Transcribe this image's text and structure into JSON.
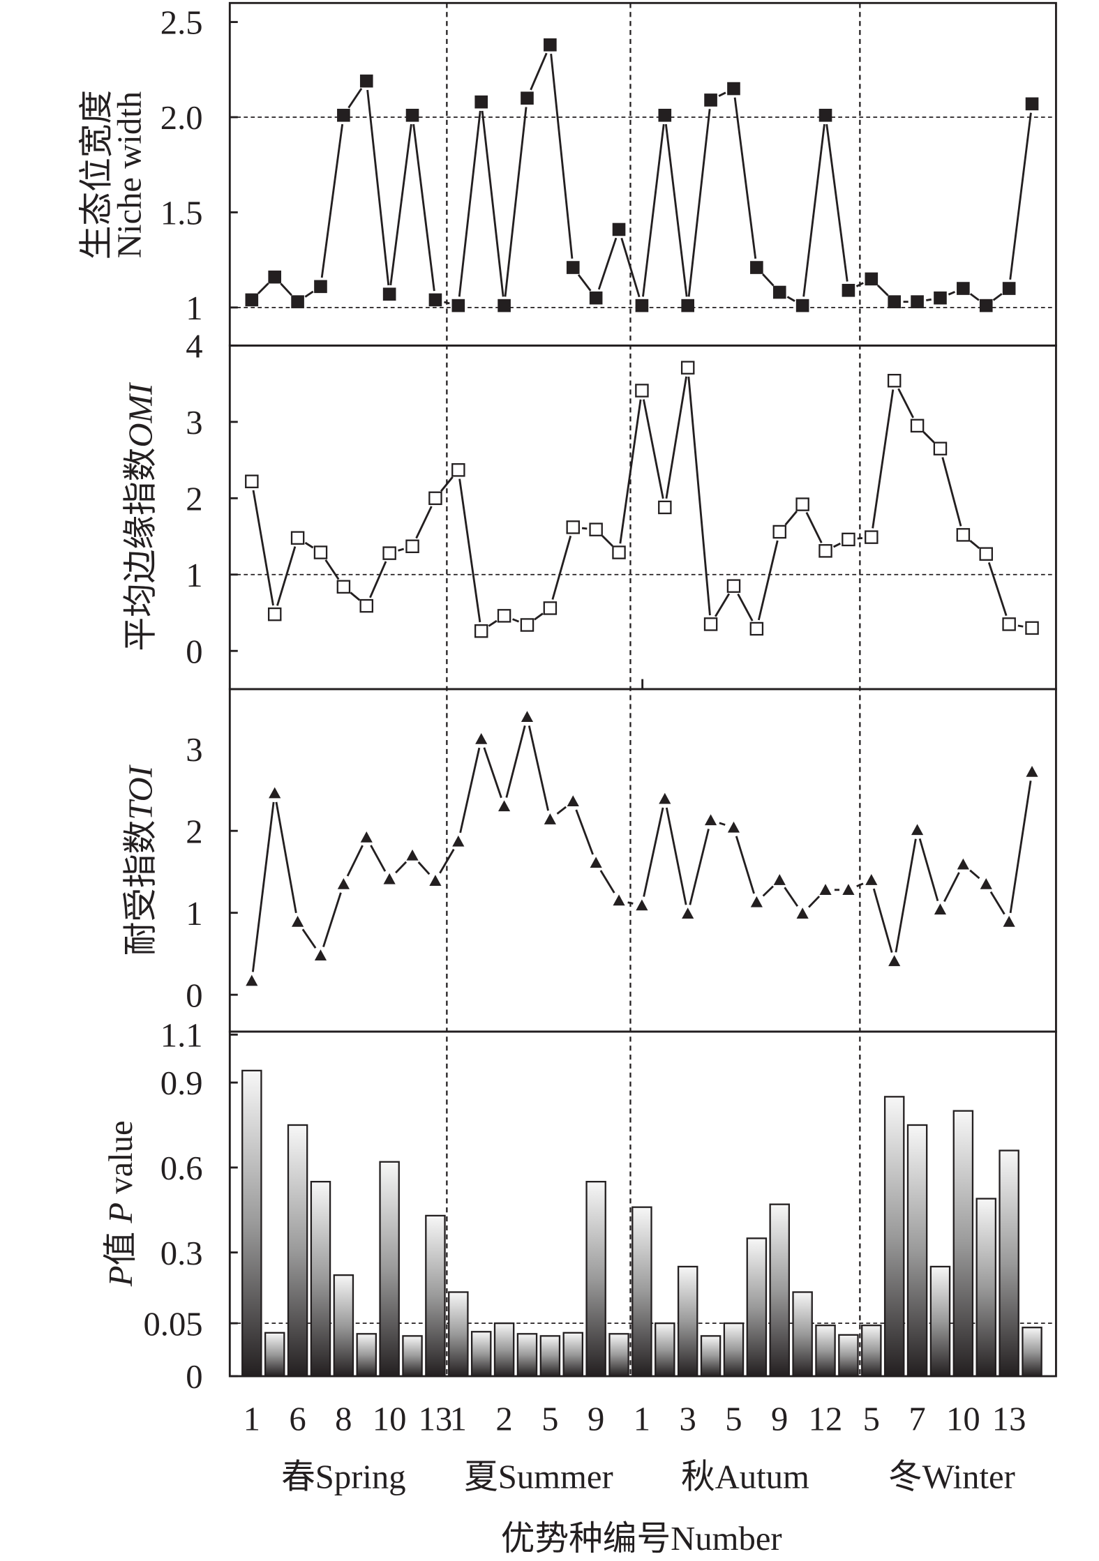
{
  "chart_data": [
    {
      "type": "line",
      "panel": "niche",
      "ylabel_cn": "生态位宽度",
      "ylabel_en": "Niche width",
      "ylim": [
        0.8,
        2.6
      ],
      "yticks": [
        1,
        1.5,
        2.0,
        2.5
      ],
      "ytick_labels": [
        "1",
        "1.5",
        "2.0",
        "2.5"
      ],
      "reference_lines": [
        1,
        2
      ],
      "marker": "filled-square",
      "values": [
        1.04,
        1.16,
        1.03,
        1.11,
        2.01,
        2.19,
        1.07,
        2.01,
        1.04,
        1.01,
        2.08,
        1.01,
        2.1,
        2.38,
        1.21,
        1.05,
        1.41,
        1.01,
        2.01,
        1.01,
        2.09,
        2.15,
        1.21,
        1.08,
        1.01,
        2.01,
        1.09,
        1.15,
        1.03,
        1.03,
        1.05,
        1.1,
        1.01,
        1.1,
        2.07
      ]
    },
    {
      "type": "line",
      "panel": "omi",
      "ylabel_cn": "平均边缘指数",
      "ylabel_en": "OMI",
      "ylim": [
        -0.5,
        4
      ],
      "yticks": [
        0,
        1,
        2,
        3,
        4
      ],
      "ytick_labels": [
        "0",
        "1",
        "2",
        "3",
        "4"
      ],
      "reference_lines": [
        1
      ],
      "marker": "open-square",
      "values": [
        2.22,
        0.48,
        1.48,
        1.29,
        0.84,
        0.59,
        1.28,
        1.37,
        2.0,
        2.37,
        0.26,
        0.46,
        0.34,
        0.56,
        1.62,
        1.59,
        1.29,
        3.41,
        1.88,
        3.71,
        0.35,
        0.85,
        0.29,
        1.56,
        1.92,
        1.31,
        1.46,
        1.49,
        3.54,
        2.95,
        2.65,
        1.52,
        1.27,
        0.35,
        0.3
      ]
    },
    {
      "type": "line",
      "panel": "toi",
      "ylabel_cn": "耐受指数",
      "ylabel_en": "TOI",
      "ylim": [
        -0.45,
        3.73
      ],
      "yticks": [
        0,
        1,
        2,
        3
      ],
      "ytick_labels": [
        "0",
        "1",
        "2",
        "3"
      ],
      "reference_lines": [],
      "marker": "filled-triangle",
      "values": [
        0.17,
        2.46,
        0.89,
        0.48,
        1.35,
        1.92,
        1.41,
        1.7,
        1.39,
        1.87,
        3.12,
        2.3,
        3.39,
        2.14,
        2.36,
        1.61,
        1.15,
        1.09,
        2.39,
        0.99,
        2.13,
        2.04,
        1.13,
        1.4,
        0.99,
        1.28,
        1.28,
        1.4,
        0.41,
        2.01,
        1.04,
        1.59,
        1.35,
        0.89,
        2.72
      ]
    },
    {
      "type": "bar",
      "panel": "pvalue",
      "ylabel_cn": "值",
      "ylabel_p": "P",
      "ylabel_en": "value",
      "ylim": [
        0,
        1.1
      ],
      "yticks": [
        0,
        0.05,
        0.3,
        0.6,
        0.9,
        1.1
      ],
      "ytick_labels": [
        "0",
        "0.05",
        "0.3",
        "0.6",
        "0.9",
        "1.1"
      ],
      "reference_lines": [
        0.05
      ],
      "values": [
        0.95,
        0.041,
        0.75,
        0.55,
        0.22,
        0.04,
        0.62,
        0.038,
        0.43,
        0.16,
        0.042,
        0.05,
        0.04,
        0.038,
        0.041,
        0.55,
        0.04,
        0.46,
        0.05,
        0.25,
        0.038,
        0.05,
        0.35,
        0.47,
        0.16,
        0.048,
        0.039,
        0.048,
        0.85,
        0.75,
        0.25,
        0.8,
        0.49,
        0.66,
        0.046
      ]
    }
  ],
  "x_axis": {
    "tick_labels": [
      "1",
      "6",
      "8",
      "10",
      "13",
      "1",
      "2",
      "5",
      "9",
      "1",
      "3",
      "5",
      "9",
      "12",
      "5",
      "7",
      "10",
      "13"
    ],
    "tick_label_point_index": [
      0,
      2,
      4,
      6,
      8,
      9,
      11,
      13,
      15,
      17,
      19,
      21,
      23,
      25,
      27,
      29,
      31,
      33
    ],
    "seasons": [
      {
        "label": "春Spring",
        "count": 9
      },
      {
        "label": "夏Summer",
        "count": 8
      },
      {
        "label": "秋Autum",
        "count": 10
      },
      {
        "label": "冬Winter",
        "count": 8
      }
    ],
    "title": "优势种编号Number"
  },
  "colors": {
    "ink": "#231f20",
    "bar_top": "#f7f7f7",
    "bar_bottom": "#231f20",
    "background": "#ffffff"
  }
}
